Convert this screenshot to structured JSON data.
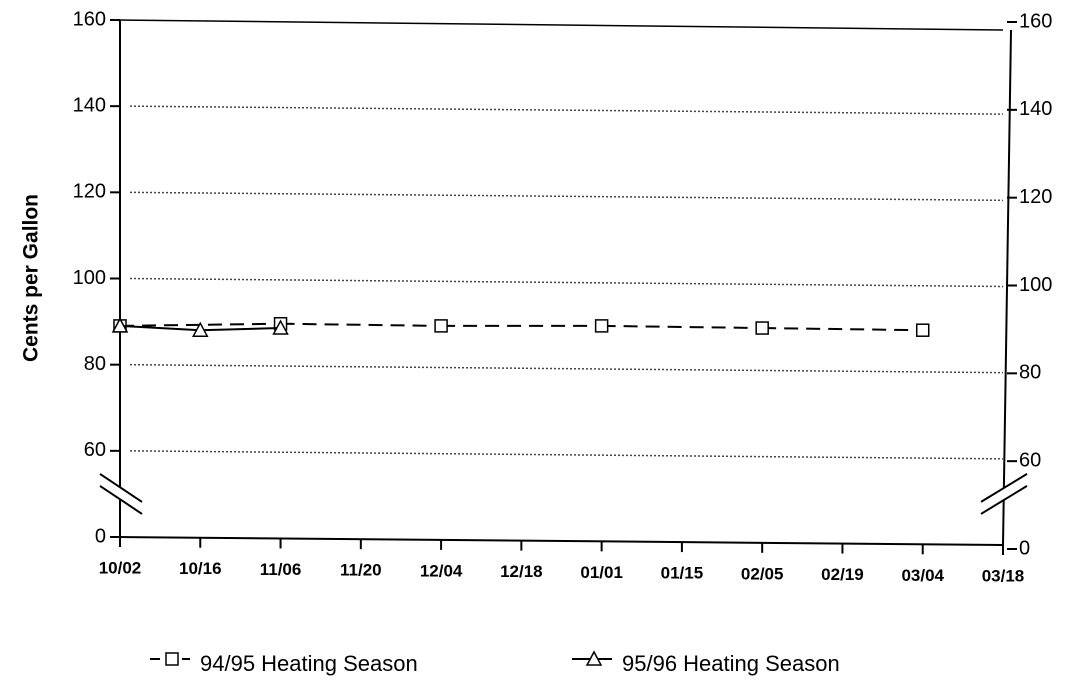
{
  "chart_data": {
    "type": "line",
    "ylabel": "Cents per Gallon",
    "categories": [
      "10/02",
      "10/16",
      "11/06",
      "11/20",
      "12/04",
      "12/18",
      "01/01",
      "01/15",
      "02/05",
      "02/19",
      "03/04",
      "03/18"
    ],
    "series": [
      {
        "name": "94/95 Heating Season",
        "color": "#000000",
        "dash": true,
        "marker": "square",
        "values": [
          89,
          null,
          89.5,
          null,
          89,
          null,
          89,
          null,
          88.5,
          null,
          88,
          null
        ]
      },
      {
        "name": "95/96 Heating Season",
        "color": "#000000",
        "dash": false,
        "marker": "triangle",
        "values": [
          89,
          88,
          88.5,
          null,
          null,
          null,
          null,
          null,
          null,
          null,
          null,
          null
        ]
      }
    ],
    "ylim": [
      0,
      160
    ],
    "yticks": [
      0,
      60,
      80,
      100,
      120,
      140,
      160
    ],
    "axis_break": true,
    "grid": true,
    "right_axis": true
  }
}
